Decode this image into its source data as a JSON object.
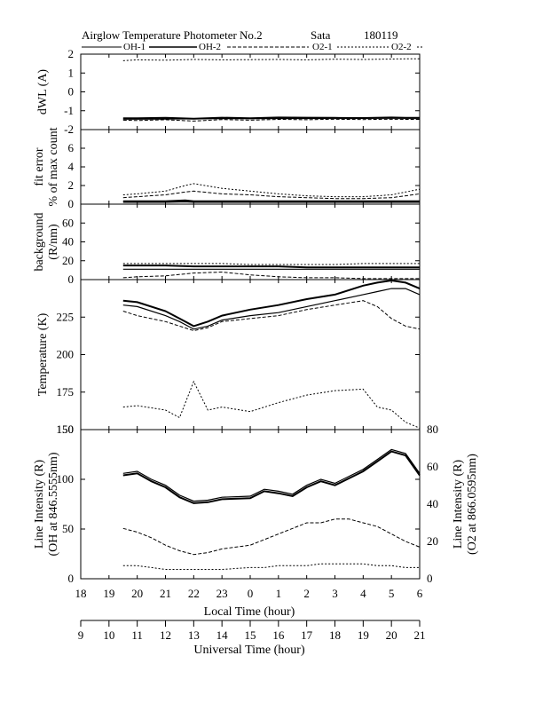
{
  "figure": {
    "title": "Airglow Temperature Photometer No.2",
    "site": "Sata",
    "date": "180119"
  },
  "legend": [
    {
      "label": "OH-1",
      "style": "solid"
    },
    {
      "label": "OH-2",
      "style": "solid-marker"
    },
    {
      "label": "O2-1",
      "style": "dashed"
    },
    {
      "label": "O2-2",
      "style": "dotted"
    }
  ],
  "chart_data": [
    {
      "type": "line",
      "panel": "dwl",
      "ylabel": "dWL (A)",
      "ylim": [
        -2,
        2
      ],
      "yticks": [
        "2",
        "1",
        "0",
        "-1",
        "-2"
      ],
      "x": [
        19.5,
        20,
        21,
        22,
        23,
        24,
        25,
        26,
        27,
        28,
        29,
        29.5,
        30
      ],
      "series": [
        {
          "name": "OH-1",
          "values": [
            -1.45,
            -1.45,
            -1.44,
            -1.43,
            -1.42,
            -1.42,
            -1.41,
            -1.41,
            -1.4,
            -1.4,
            -1.4,
            -1.4,
            -1.4
          ]
        },
        {
          "name": "OH-2",
          "values": [
            -1.4,
            -1.4,
            -1.38,
            -1.42,
            -1.37,
            -1.4,
            -1.36,
            -1.37,
            -1.38,
            -1.39,
            -1.36,
            -1.38,
            -1.38
          ]
        },
        {
          "name": "O2-1",
          "values": [
            -1.5,
            -1.52,
            -1.48,
            -1.55,
            -1.47,
            -1.5,
            -1.46,
            -1.48,
            -1.45,
            -1.47,
            -1.45,
            -1.46,
            -1.46
          ]
        },
        {
          "name": "O2-2",
          "values": [
            1.65,
            1.7,
            1.68,
            1.72,
            1.7,
            1.71,
            1.72,
            1.7,
            1.73,
            1.72,
            1.74,
            1.75,
            1.75
          ]
        }
      ]
    },
    {
      "type": "line",
      "panel": "fit_error",
      "ylabel": "fit error",
      "ylabel2": "% of max count",
      "ylim": [
        0,
        8
      ],
      "yticks": [
        "6",
        "4",
        "2",
        "0"
      ],
      "x": [
        19.5,
        20,
        21,
        21.7,
        22,
        23,
        24,
        25,
        26,
        27,
        28,
        29,
        29.5,
        30
      ],
      "series": [
        {
          "name": "OH-1",
          "values": [
            0.2,
            0.2,
            0.2,
            0.25,
            0.2,
            0.2,
            0.2,
            0.2,
            0.2,
            0.2,
            0.2,
            0.2,
            0.2,
            0.2
          ]
        },
        {
          "name": "OH-2",
          "values": [
            0.3,
            0.3,
            0.3,
            0.4,
            0.3,
            0.3,
            0.3,
            0.3,
            0.3,
            0.3,
            0.3,
            0.3,
            0.3,
            0.3
          ]
        },
        {
          "name": "O2-1",
          "values": [
            0.7,
            0.8,
            1.0,
            1.3,
            1.4,
            1.1,
            1.0,
            0.8,
            0.7,
            0.6,
            0.6,
            0.7,
            0.9,
            1.1
          ]
        },
        {
          "name": "O2-2",
          "values": [
            1.0,
            1.1,
            1.4,
            2.0,
            2.2,
            1.7,
            1.4,
            1.1,
            0.9,
            0.8,
            0.8,
            1.0,
            1.3,
            1.6
          ]
        }
      ]
    },
    {
      "type": "line",
      "panel": "background",
      "ylabel": "background",
      "ylabel2": "(R/nm)",
      "ylim": [
        0,
        80
      ],
      "yticks": [
        "60",
        "40",
        "20",
        "0"
      ],
      "x": [
        19.5,
        20,
        21,
        22,
        23,
        24,
        25,
        26,
        27,
        28,
        29,
        30
      ],
      "series": [
        {
          "name": "OH-1",
          "values": [
            11,
            11,
            11,
            11,
            11,
            11,
            11,
            11,
            11,
            11,
            11,
            11
          ]
        },
        {
          "name": "OH-2",
          "values": [
            15,
            15,
            15,
            14,
            14,
            14,
            14,
            13,
            13,
            13,
            13,
            13
          ]
        },
        {
          "name": "O2-1",
          "values": [
            2,
            3,
            4,
            7,
            8,
            5,
            3,
            2,
            2,
            1,
            1,
            1
          ]
        },
        {
          "name": "O2-2",
          "values": [
            17,
            17,
            17,
            17,
            17,
            16,
            16,
            16,
            16,
            17,
            17,
            17
          ]
        }
      ]
    },
    {
      "type": "line",
      "panel": "temperature",
      "ylabel": "Temperature (K)",
      "ylim": [
        150,
        250
      ],
      "yticks": [
        "225",
        "200",
        "175",
        "150"
      ],
      "x": [
        19.5,
        20,
        21,
        21.5,
        22,
        22.5,
        23,
        24,
        25,
        26,
        27,
        28,
        28.5,
        29,
        29.5,
        30
      ],
      "series": [
        {
          "name": "OH-1",
          "values": [
            233,
            232,
            226,
            222,
            217,
            219,
            223,
            226,
            228,
            232,
            236,
            240,
            242,
            244,
            244,
            240
          ]
        },
        {
          "name": "OH-2",
          "values": [
            236,
            235,
            229,
            224,
            219,
            222,
            226,
            230,
            233,
            237,
            240,
            246,
            248,
            250,
            248,
            244
          ]
        },
        {
          "name": "O2-1",
          "values": [
            229,
            226,
            222,
            219,
            216,
            218,
            222,
            224,
            226,
            230,
            233,
            236,
            232,
            224,
            219,
            217
          ]
        },
        {
          "name": "O2-2",
          "values": [
            165,
            166,
            163,
            158,
            182,
            163,
            165,
            162,
            168,
            173,
            176,
            177,
            165,
            163,
            155,
            151
          ]
        }
      ]
    },
    {
      "type": "line",
      "panel": "intensity",
      "ylabel": "Line Intensity (R)",
      "ylabel2": "(OH at 846.5555nm)",
      "ylim": [
        0,
        150
      ],
      "yticks": [
        "150",
        "100",
        "50",
        "0"
      ],
      "ylabel_right": "Line Intensity (R)",
      "ylabel_right2": "(O2 at 866.0595nm)",
      "ylim_right": [
        0,
        80
      ],
      "yticks_right": [
        "80",
        "60",
        "40",
        "20",
        "0"
      ],
      "x": [
        19.5,
        20,
        20.5,
        21,
        21.5,
        22,
        22.5,
        23,
        24,
        24.5,
        25,
        25.5,
        26,
        26.5,
        27,
        27.5,
        28,
        28.5,
        29,
        29.5,
        30
      ],
      "series": [
        {
          "name": "OH-1",
          "values": [
            106,
            108,
            100,
            94,
            84,
            78,
            79,
            82,
            83,
            90,
            88,
            85,
            94,
            100,
            96,
            103,
            110,
            120,
            130,
            126,
            106
          ]
        },
        {
          "name": "OH-2",
          "values": [
            104,
            106,
            98,
            92,
            82,
            76,
            77,
            80,
            81,
            88,
            86,
            83,
            92,
            98,
            94,
            101,
            108,
            118,
            128,
            124,
            104
          ]
        },
        {
          "name": "O2-1",
          "values": [
            27,
            25,
            22,
            18,
            15,
            13,
            14,
            16,
            18,
            21,
            24,
            27,
            30,
            30,
            32,
            32,
            30,
            28,
            24,
            20,
            17
          ]
        },
        {
          "name": "O2-2",
          "values": [
            7,
            7,
            6,
            5,
            5,
            5,
            5,
            5,
            6,
            6,
            7,
            7,
            7,
            8,
            8,
            8,
            8,
            7,
            7,
            6,
            6
          ]
        }
      ]
    }
  ],
  "axes": {
    "local": {
      "title": "Local Time (hour)",
      "ticks": [
        "18",
        "19",
        "20",
        "21",
        "22",
        "23",
        "0",
        "1",
        "2",
        "3",
        "4",
        "5",
        "6"
      ]
    },
    "universal": {
      "title": "Universal Time (hour)",
      "ticks": [
        "9",
        "10",
        "11",
        "12",
        "13",
        "14",
        "15",
        "16",
        "17",
        "18",
        "19",
        "20",
        "21"
      ]
    }
  }
}
